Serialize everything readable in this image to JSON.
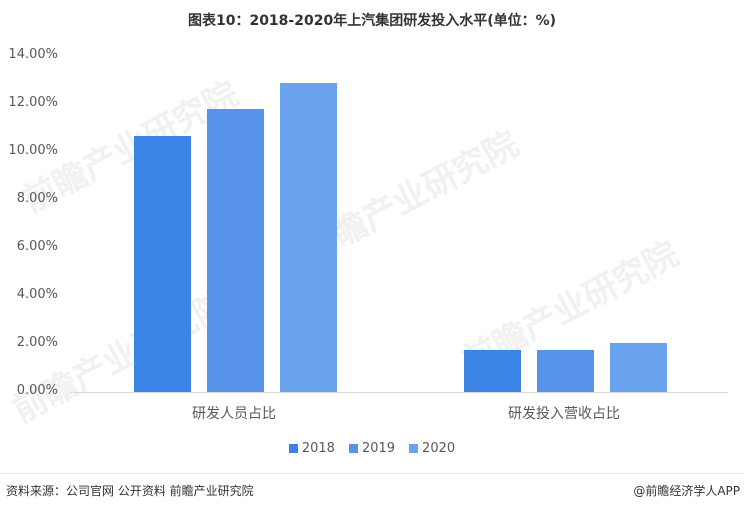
{
  "header": {
    "title": "图表10：2018-2020年上汽集团研发投入水平(单位：%)"
  },
  "chart_data": {
    "type": "bar",
    "title": "图表10：2018-2020年上汽集团研发投入水平(单位：%)",
    "xlabel": "",
    "ylabel": "",
    "ylim": [
      0,
      14
    ],
    "y_ticks": [
      "0.00%",
      "2.00%",
      "4.00%",
      "6.00%",
      "8.00%",
      "10.00%",
      "12.00%",
      "14.00%"
    ],
    "grid": false,
    "legend_position": "bottom",
    "categories": [
      "研发人员占比",
      "研发投入营收占比"
    ],
    "series": [
      {
        "name": "2018",
        "color": "#3c83e6",
        "values": [
          10.67,
          1.75
        ]
      },
      {
        "name": "2019",
        "color": "#5893ea",
        "values": [
          11.79,
          1.75
        ]
      },
      {
        "name": "2020",
        "color": "#6aa2ee",
        "values": [
          12.88,
          2.04
        ]
      }
    ]
  },
  "legend": {
    "items": [
      {
        "label": "2018",
        "color": "#3c83e6"
      },
      {
        "label": "2019",
        "color": "#5893ea"
      },
      {
        "label": "2020",
        "color": "#6aa2ee"
      }
    ]
  },
  "footer": {
    "source": "资料来源：公司官网 公开资料 前瞻产业研究院",
    "credit": "@前瞻经济学人APP"
  },
  "watermark": {
    "text": "前瞻产业研究院"
  }
}
